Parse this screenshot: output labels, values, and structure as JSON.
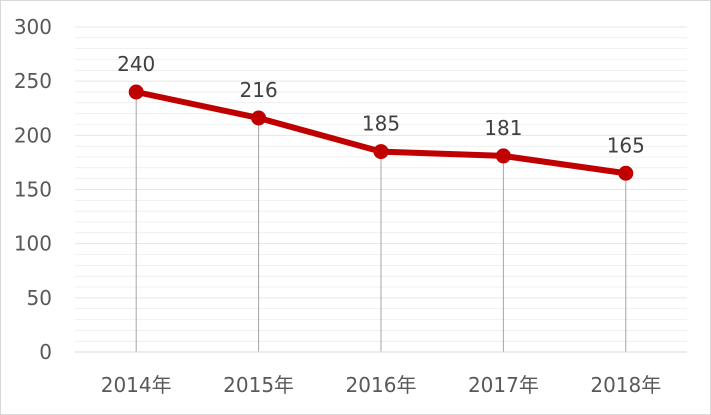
{
  "chart_data": {
    "type": "line",
    "categories": [
      "2014年",
      "2015年",
      "2016年",
      "2017年",
      "2018年"
    ],
    "series": [
      {
        "values": [
          240,
          216,
          185,
          181,
          165
        ],
        "color": "#c00000"
      }
    ],
    "data_labels": [
      "240",
      "216",
      "185",
      "181",
      "165"
    ],
    "y_ticks": [
      "0",
      "50",
      "100",
      "150",
      "200",
      "250",
      "300"
    ],
    "ylim": [
      0,
      300
    ],
    "title": "",
    "xlabel": "",
    "ylabel": "",
    "grid": true,
    "legend": "none",
    "colors": {
      "line": "#c00000",
      "gridline": "#e6e6e6",
      "axis": "#d9d9d9",
      "text": "#595959"
    }
  }
}
